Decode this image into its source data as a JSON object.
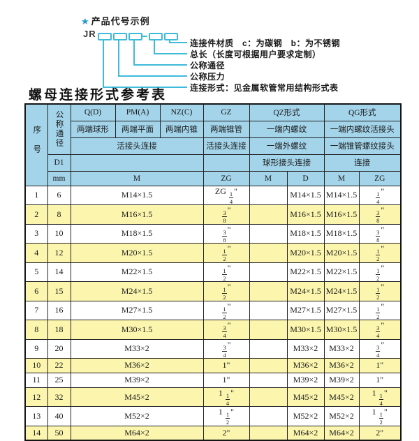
{
  "diagram": {
    "star": "★",
    "title": "产品代号示例",
    "code_prefix": "JR",
    "labels": [
      "连接件材质　c：为碳钢　b：为不锈钢",
      "总长（长度可根据用户要求定制）",
      "公称通径",
      "公称压力",
      "连接形式：见金属软管常用结构形式表"
    ]
  },
  "table": {
    "title": "螺母连接形式参考表",
    "header": {
      "seq": "序号",
      "dn": "公称通径",
      "d1": "D1",
      "mm": "mm",
      "col_q": "Q(D)",
      "col_pm": "PM(A)",
      "col_nz": "NZ(C)",
      "col_gz": "GZ",
      "col_qz": "QZ形式",
      "col_qg": "QG形式",
      "q_desc": "两端球形",
      "pm_desc": "两端平面",
      "nz_desc": "两端内锥",
      "gz_desc": "两端锥管",
      "qz_desc1": "一端内螺纹",
      "qg_desc1": "一端内螺纹活接头",
      "union_conn": "活接头连接",
      "gz_conn": "活接头连接",
      "qz_desc2": "一端外螺纹",
      "qg_desc2": "一端锥管螺纹接头",
      "qz_conn": "球形接头连接",
      "qg_conn": "连接",
      "m_span": "M",
      "zg_gz": "ZG",
      "qz_m": "M",
      "qz_d": "D",
      "qg_m": "M",
      "qg_zg": "ZG"
    },
    "rows": [
      {
        "seq": "1",
        "dn": "6",
        "m": "M14×1.5",
        "gz": "ZG 1/4\"",
        "qz_m": "",
        "qz_d": "M14×1.5",
        "qg_m": "M14×1.5",
        "qg_zg": "1/4\""
      },
      {
        "seq": "2",
        "dn": "8",
        "m": "M16×1.5",
        "gz": "3/8\"",
        "qz_m": "",
        "qz_d": "M16×1.5",
        "qg_m": "M16×1.5",
        "qg_zg": "3/8\""
      },
      {
        "seq": "3",
        "dn": "10",
        "m": "M18×1.5",
        "gz": "3/8\"",
        "qz_m": "",
        "qz_d": "M18×1.5",
        "qg_m": "M18×1.5",
        "qg_zg": "3/8\""
      },
      {
        "seq": "4",
        "dn": "12",
        "m": "M20×1.5",
        "gz": "1/2\"",
        "qz_m": "",
        "qz_d": "M20×1.5",
        "qg_m": "M20×1.5",
        "qg_zg": "1/2\""
      },
      {
        "seq": "5",
        "dn": "14",
        "m": "M22×1.5",
        "gz": "1/2\"",
        "qz_m": "",
        "qz_d": "M22×1.5",
        "qg_m": "M22×1.5",
        "qg_zg": "1/2\""
      },
      {
        "seq": "6",
        "dn": "15",
        "m": "M24×1.5",
        "gz": "1/2\"",
        "qz_m": "",
        "qz_d": "M24×1.5",
        "qg_m": "M24×1.5",
        "qg_zg": "1/2\""
      },
      {
        "seq": "7",
        "dn": "16",
        "m": "M27×1.5",
        "gz": "1/2\"",
        "qz_m": "",
        "qz_d": "M27×1.5",
        "qg_m": "M27×1.5",
        "qg_zg": "1/2\""
      },
      {
        "seq": "8",
        "dn": "18",
        "m": "M30×1.5",
        "gz": "3/4\"",
        "qz_m": "",
        "qz_d": "M30×1.5",
        "qg_m": "M30×1.5",
        "qg_zg": "3/4\""
      },
      {
        "seq": "9",
        "dn": "20",
        "m": "M33×2",
        "gz": "3/4\"",
        "qz_m": "",
        "qz_d": "M33×2",
        "qg_m": "M33×2",
        "qg_zg": "3/4\""
      },
      {
        "seq": "10",
        "dn": "22",
        "m": "M36×2",
        "gz": "1\"",
        "qz_m": "",
        "qz_d": "M36×2",
        "qg_m": "M36×2",
        "qg_zg": "1\""
      },
      {
        "seq": "11",
        "dn": "25",
        "m": "M39×2",
        "gz": "1\"",
        "qz_m": "",
        "qz_d": "M39×2",
        "qg_m": "M39×2",
        "qg_zg": "1\""
      },
      {
        "seq": "12",
        "dn": "32",
        "m": "M45×2",
        "gz": "1 1/4\"",
        "qz_m": "",
        "qz_d": "M45×2",
        "qg_m": "M45×2",
        "qg_zg": "1 1/4\""
      },
      {
        "seq": "13",
        "dn": "40",
        "m": "M52×2",
        "gz": "1 1/2\"",
        "qz_m": "",
        "qz_d": "M52×2",
        "qg_m": "M52×2",
        "qg_zg": "1 1/2\""
      },
      {
        "seq": "14",
        "dn": "50",
        "m": "M64×2",
        "gz": "2\"",
        "qz_m": "",
        "qz_d": "M64×2",
        "qg_m": "M64×2",
        "qg_zg": "2\""
      }
    ]
  },
  "colors": {
    "header_blue": "#a3d4ea",
    "row_yellow": "#fbf5ad",
    "diagram_cyan": "#3fbbda",
    "star_blue": "#1e98d5",
    "border": "#232323"
  }
}
